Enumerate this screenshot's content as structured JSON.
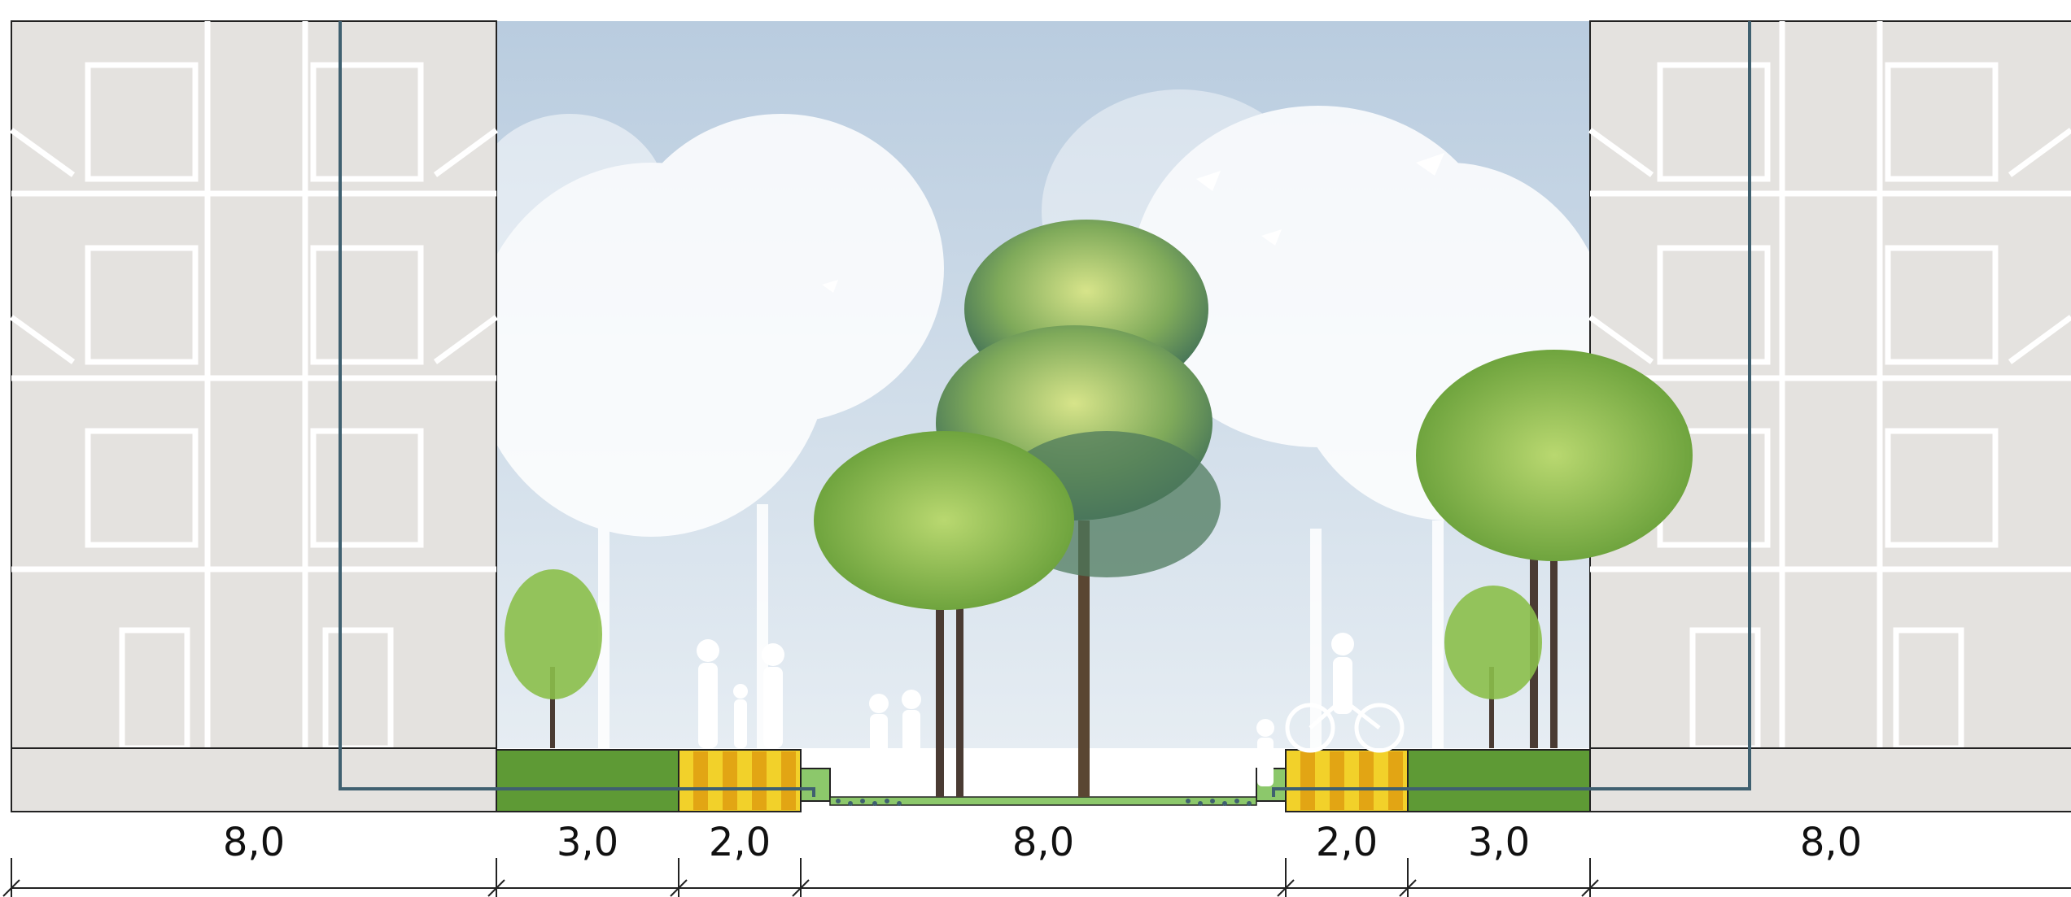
{
  "dimensions": {
    "labels": [
      "8,0",
      "3,0",
      "2,0",
      "8,0",
      "2,0",
      "3,0",
      "8,0"
    ]
  },
  "colors": {
    "sky_top": "#b9ccdf",
    "sky_bottom": "#e6edf3",
    "building": "#e4e2df",
    "building_line": "#ffffff",
    "lawn": "#5e9a35",
    "yellow_band": "#f2d12a",
    "orange_band": "#e2a514",
    "pipe": "#3f6070",
    "tree_green": "#8bbf4a",
    "tree_dark": "#4e7a5c"
  }
}
